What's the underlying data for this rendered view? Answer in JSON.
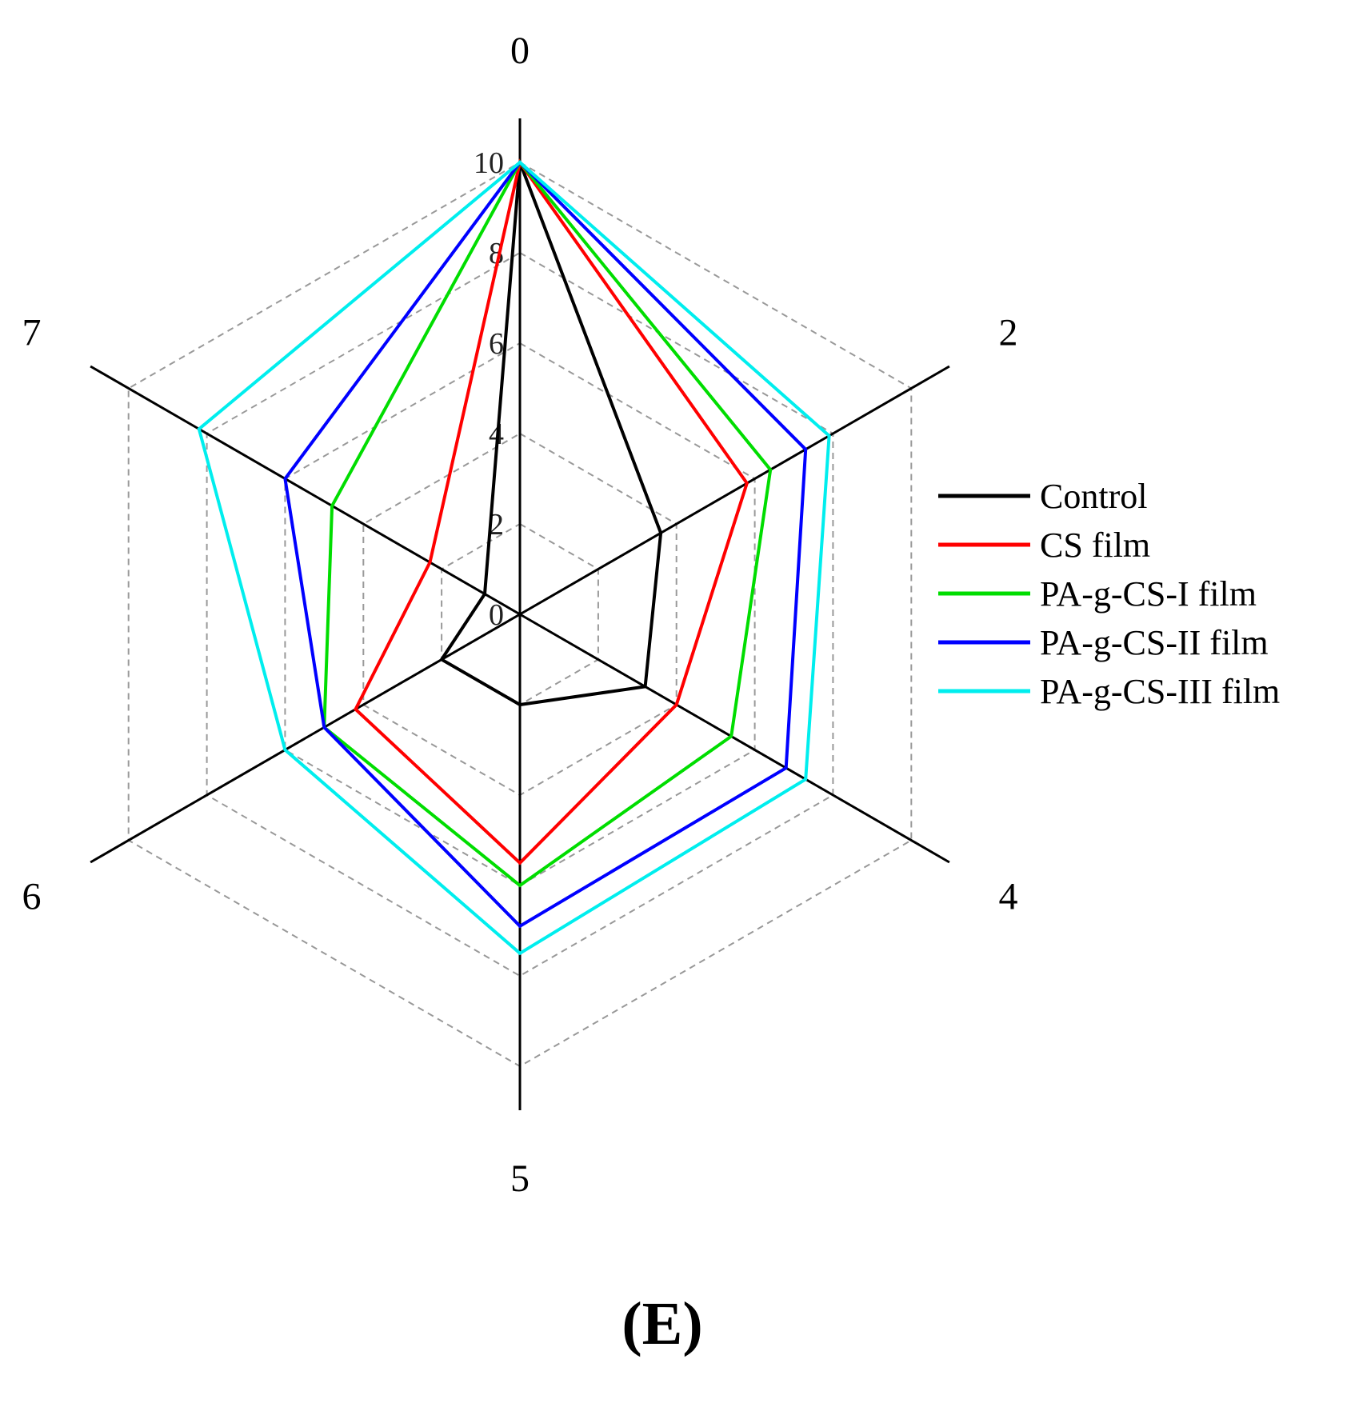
{
  "chart_data": {
    "type": "radar",
    "axes": [
      "0",
      "2",
      "4",
      "5",
      "6",
      "7"
    ],
    "radial_range": [
      0,
      10
    ],
    "radial_ticks": [
      "10",
      "8",
      "6",
      "4",
      "2",
      "0"
    ],
    "grid": true,
    "legend_position": "right",
    "series": [
      {
        "name": "Control",
        "color": "#000000",
        "values": [
          10,
          3.6,
          3.2,
          2.0,
          2.0,
          0.9
        ]
      },
      {
        "name": "CS film",
        "color": "#ff0000",
        "values": [
          10,
          5.8,
          4.0,
          5.5,
          4.2,
          2.3
        ]
      },
      {
        "name": "PA-g-CS-I film",
        "color": "#00dd00",
        "values": [
          10,
          6.4,
          5.4,
          6.0,
          5.0,
          4.8
        ]
      },
      {
        "name": "PA-g-CS-II film",
        "color": "#0000ff",
        "values": [
          10,
          7.3,
          6.8,
          6.9,
          5.0,
          6.0
        ]
      },
      {
        "name": "PA-g-CS-III film",
        "color": "#00eeee",
        "values": [
          10,
          7.9,
          7.3,
          7.5,
          6.0,
          8.2
        ]
      }
    ]
  },
  "panel_label": "(E)"
}
